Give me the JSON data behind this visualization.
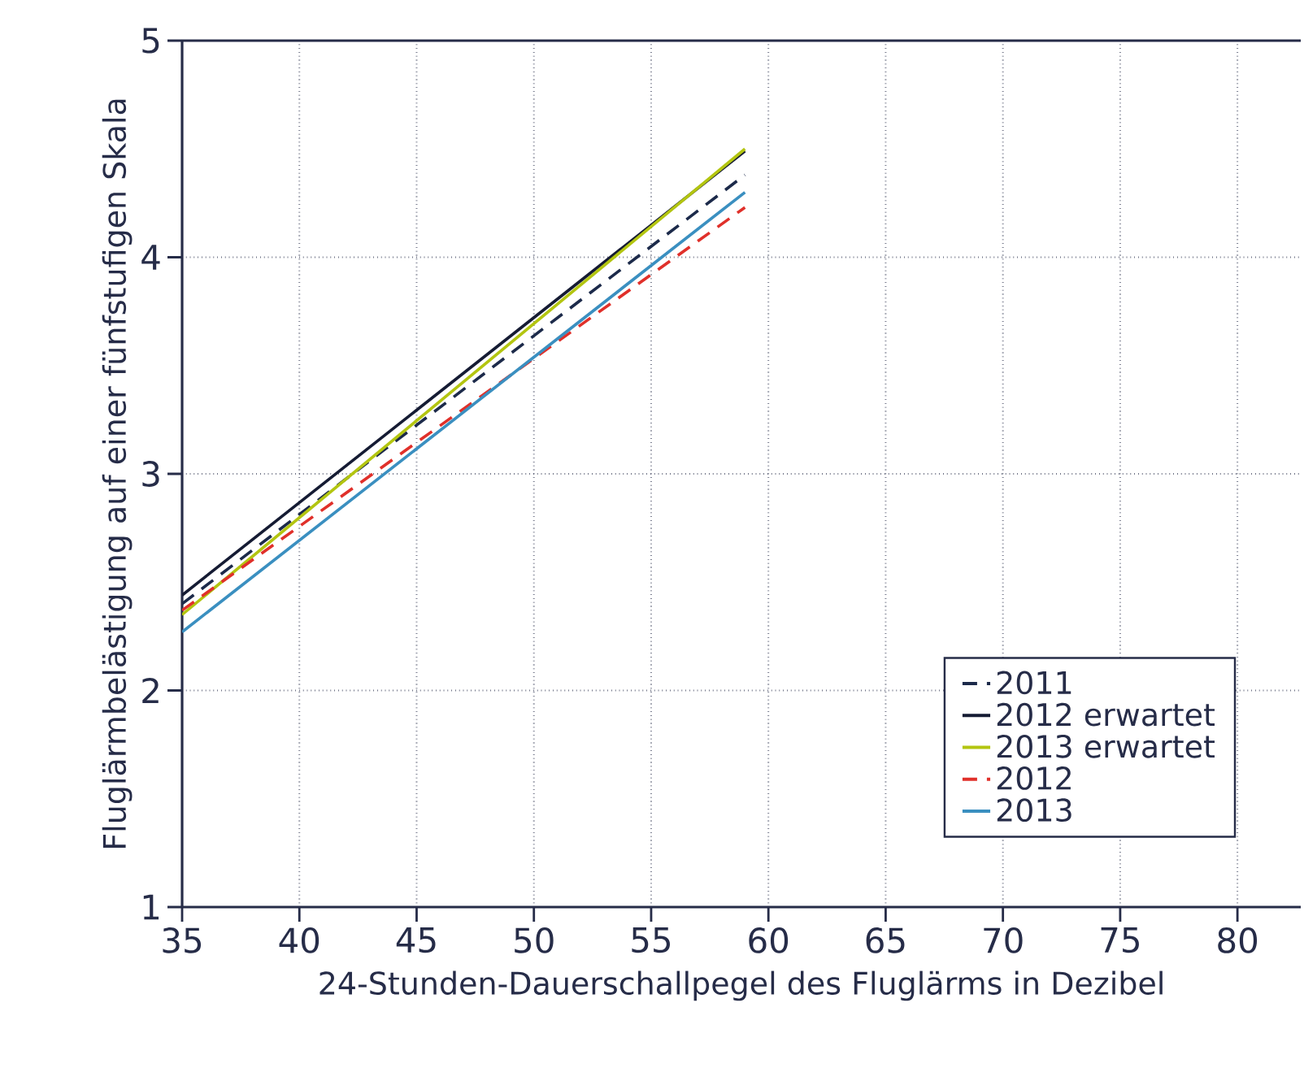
{
  "chart_data": {
    "type": "line",
    "xlabel": "24-Stunden-Dauerschallpegel des Fluglärms in Dezibel",
    "ylabel": "Fluglärmbelästigung auf einer fünfstufigen Skala",
    "x": [
      35,
      59
    ],
    "xlim": [
      35,
      82.7
    ],
    "xticks": [
      35,
      40,
      45,
      50,
      55,
      60,
      65,
      70,
      75,
      80
    ],
    "ylim": [
      1,
      5
    ],
    "yticks": [
      1,
      2,
      3,
      4,
      5
    ],
    "grid": true,
    "legend": "bottom right",
    "marker": "none",
    "series": [
      {
        "name": "2011",
        "color": "#1c2a4a",
        "line_style": "dashed",
        "values": [
          2.4,
          4.38
        ]
      },
      {
        "name": "2012 erwartet",
        "color": "#151b33",
        "line_style": "solid",
        "values": [
          2.44,
          4.49
        ]
      },
      {
        "name": "2013 erwartet",
        "color": "#b3c510",
        "line_style": "solid",
        "values": [
          2.35,
          4.5
        ]
      },
      {
        "name": "2012",
        "color": "#e0302a",
        "line_style": "dashed",
        "values": [
          2.37,
          4.23
        ]
      },
      {
        "name": "2013",
        "color": "#3a8fc0",
        "line_style": "solid",
        "values": [
          2.27,
          4.3
        ]
      }
    ]
  }
}
